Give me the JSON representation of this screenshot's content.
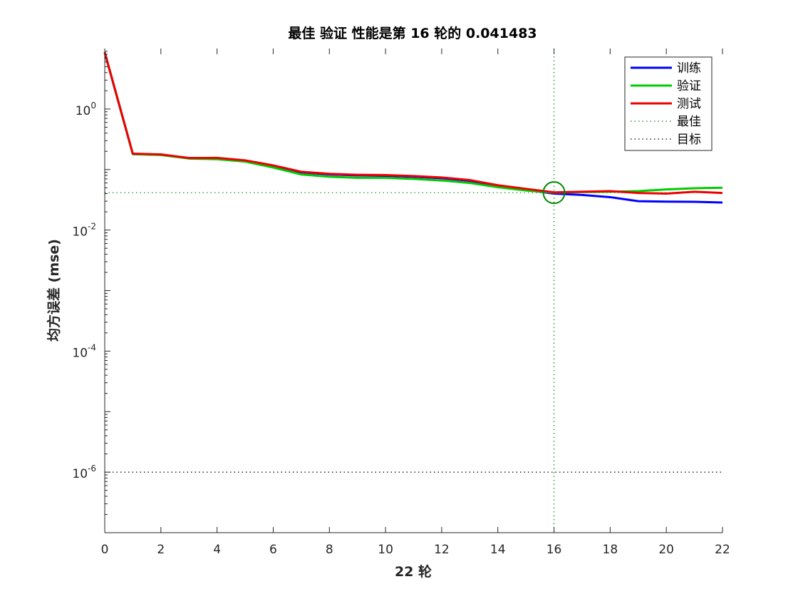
{
  "chart_data": {
    "type": "line",
    "title": "最佳 验证 性能是第 16 轮的 0.041483",
    "xlabel": "22 轮",
    "ylabel": "均方误差 (mse)",
    "xlim": [
      0,
      22
    ],
    "ylim": [
      1e-07,
      10
    ],
    "yscale": "log",
    "x_ticks": [
      0,
      2,
      4,
      6,
      8,
      10,
      12,
      14,
      16,
      18,
      20,
      22
    ],
    "y_ticks": [
      {
        "value": 1,
        "base": "10",
        "exp": "0"
      },
      {
        "value": 0.01,
        "base": "10",
        "exp": "-2"
      },
      {
        "value": 0.0001,
        "base": "10",
        "exp": "-4"
      },
      {
        "value": 1e-06,
        "base": "10",
        "exp": "-6"
      }
    ],
    "x": [
      0,
      1,
      2,
      3,
      4,
      5,
      6,
      7,
      8,
      9,
      10,
      11,
      12,
      13,
      14,
      15,
      16,
      17,
      18,
      19,
      20,
      21,
      22
    ],
    "series": [
      {
        "name": "训练",
        "color": "#0000ff",
        "values": [
          8.5,
          0.18,
          0.175,
          0.155,
          0.155,
          0.14,
          0.115,
          0.09,
          0.083,
          0.08,
          0.079,
          0.076,
          0.072,
          0.065,
          0.053,
          0.046,
          0.04,
          0.038,
          0.035,
          0.03,
          0.0295,
          0.0293,
          0.0285
        ]
      },
      {
        "name": "验证",
        "color": "#00cc00",
        "values": [
          8.6,
          0.18,
          0.174,
          0.152,
          0.148,
          0.135,
          0.108,
          0.083,
          0.076,
          0.073,
          0.073,
          0.07,
          0.066,
          0.06,
          0.051,
          0.045,
          0.041483,
          0.0425,
          0.043,
          0.044,
          0.047,
          0.049,
          0.05
        ]
      },
      {
        "name": "测试",
        "color": "#ee0000",
        "values": [
          8.7,
          0.183,
          0.178,
          0.155,
          0.156,
          0.142,
          0.117,
          0.092,
          0.085,
          0.082,
          0.081,
          0.078,
          0.074,
          0.067,
          0.055,
          0.048,
          0.042,
          0.043,
          0.044,
          0.041,
          0.04,
          0.043,
          0.041
        ]
      }
    ],
    "best": {
      "label": "最佳",
      "epoch": 16,
      "value": 0.041483,
      "color": "#008800"
    },
    "goal": {
      "label": "目标",
      "value": 1e-06,
      "color": "#000000"
    },
    "legend_position": "top-right"
  }
}
